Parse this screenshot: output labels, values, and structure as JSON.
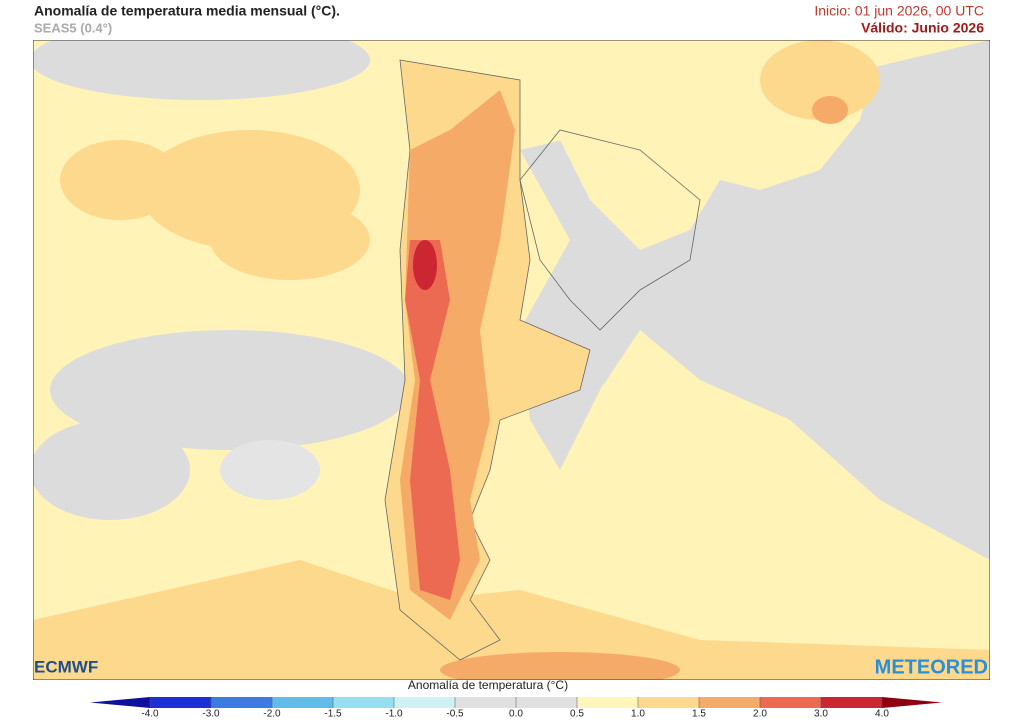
{
  "header": {
    "title": "Anomalía de temperatura media mensual (°C).",
    "subtitle": "SEAS5 (0.4°)",
    "start": "Inicio: 01 jun 2026, 00 UTC",
    "valid": "Válido: Junio 2026"
  },
  "logos": {
    "left": "ECMWF",
    "right": "METEORED"
  },
  "colorbar": {
    "title": "Anomalía de temperatura (°C)",
    "ticks": [
      {
        "value": -4,
        "label": "-4.0"
      },
      {
        "value": -3,
        "label": "-3.0"
      },
      {
        "value": -2,
        "label": "-2.0"
      },
      {
        "value": -1.5,
        "label": "-1.5"
      },
      {
        "value": -1,
        "label": "-1.0"
      },
      {
        "value": -0.5,
        "label": "-0.5"
      },
      {
        "value": 0,
        "label": "0.0"
      },
      {
        "value": 0.5,
        "label": "0.5"
      },
      {
        "value": 1,
        "label": "1.0"
      },
      {
        "value": 1.5,
        "label": "1.5"
      },
      {
        "value": 2,
        "label": "2.0"
      },
      {
        "value": 3,
        "label": "3.0"
      },
      {
        "value": 4,
        "label": "4.0"
      }
    ],
    "colors": [
      "#1e2fd6",
      "#3e7be0",
      "#5fbde8",
      "#96dff0",
      "#cff1f5",
      "#e0e0e0",
      "#e0e0e0",
      "#fff6bd",
      "#fdd98d",
      "#f6aa68",
      "#ec6a52",
      "#cc2633"
    ],
    "under_color": "#10109e",
    "over_color": "#8e0010"
  }
}
